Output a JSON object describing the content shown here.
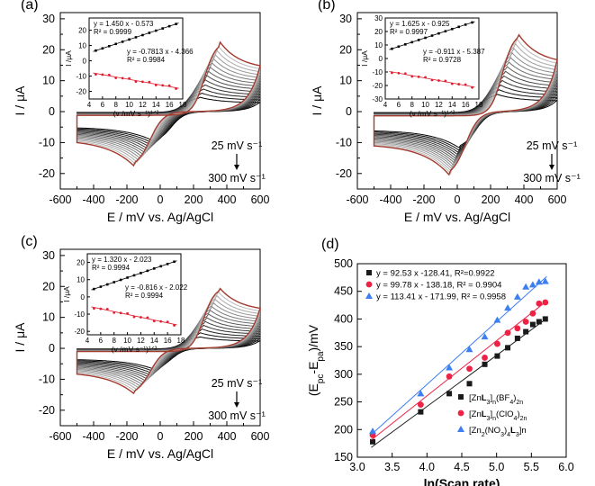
{
  "chart_data": [
    {
      "type": "line",
      "panel_label": "(a)",
      "xlabel": "E / mV vs. Ag/AgCl",
      "ylabel": "I / μA",
      "xlim": [
        -600,
        600
      ],
      "ylim": [
        -25,
        32
      ],
      "x_ticks": [
        "-600",
        "-400",
        "-200",
        "0",
        "200",
        "400",
        "600"
      ],
      "y_ticks": [
        "-20",
        "-10",
        "0",
        "10",
        "20",
        "30"
      ],
      "annotation_top": "25 mV s⁻¹",
      "annotation_bottom": "300 mV s⁻¹",
      "cv": {
        "peak_anodic_mV": 355,
        "peak_cathodic_mV": -150,
        "ipa_max_uA": 24,
        "ipc_max_uA": -18,
        "ipa_min_uA": 5,
        "ipc_min_uA": -10,
        "n_scans": 14
      },
      "inset": {
        "xlabel": "(v /mV s⁻¹)¹ᐟ²",
        "ylabel": "I /μA",
        "xlim": [
          4,
          18
        ],
        "ylim": [
          -25,
          28
        ],
        "x_ticks": [
          "4",
          "6",
          "8",
          "10",
          "12",
          "14",
          "16",
          "18"
        ],
        "y_ticks": [
          "-20",
          "-10",
          "0",
          "10",
          "20"
        ],
        "fit_anodic": "y = 1.450  x - 0.573",
        "r2_anodic": "R² = 0.9999",
        "fit_cathodic": "y = -0.7813 x - 4.366",
        "r2_cathodic": "R² = 0.9984",
        "slope_a": 1.45,
        "intercept_a": -0.573,
        "slope_c": -0.7813,
        "intercept_c": -4.366
      }
    },
    {
      "type": "line",
      "panel_label": "(b)",
      "xlabel": "E / mV vs. Ag/AgCl",
      "ylabel": "I / μA",
      "xlim": [
        -600,
        600
      ],
      "ylim": [
        -25,
        32
      ],
      "x_ticks": [
        "-600",
        "-400",
        "-200",
        "0",
        "200",
        "400",
        "600"
      ],
      "y_ticks": [
        "-20",
        "-10",
        "0",
        "10",
        "20",
        "30"
      ],
      "annotation_top": "25 mV s⁻¹",
      "annotation_bottom": "300 mV s⁻¹",
      "cv": {
        "peak_anodic_mV": 360,
        "peak_cathodic_mV": -40,
        "ipa_max_uA": 27,
        "ipc_max_uA": -21,
        "ipa_min_uA": 6,
        "ipc_min_uA": -12,
        "n_scans": 14
      },
      "inset": {
        "xlabel": "(v /mV s⁻¹)¹ᐟ²",
        "ylabel": "I /μA",
        "xlim": [
          4,
          18
        ],
        "ylim": [
          -30,
          30
        ],
        "x_ticks": [
          "4",
          "6",
          "8",
          "10",
          "12",
          "14",
          "16",
          "18"
        ],
        "y_ticks": [
          "-30",
          "-20",
          "-10",
          "0",
          "10",
          "20",
          "30"
        ],
        "fit_anodic": "y = 1.625 x - 0.925",
        "r2_anodic": "R² = 0.9997",
        "fit_cathodic": "y = -0.911 x - 5.387",
        "r2_cathodic": "R² = 0.9728",
        "slope_a": 1.625,
        "intercept_a": -0.925,
        "slope_c": -0.911,
        "intercept_c": -5.387
      }
    },
    {
      "type": "line",
      "panel_label": "(c)",
      "xlabel": "E / mV vs. Ag/AgCl",
      "ylabel": "I / μA",
      "xlim": [
        -600,
        600
      ],
      "ylim": [
        -25,
        32
      ],
      "x_ticks": [
        "-600",
        "-400",
        "-200",
        "0",
        "200",
        "400",
        "600"
      ],
      "y_ticks": [
        "-20",
        "-10",
        "0",
        "10",
        "20",
        "30"
      ],
      "annotation_top": "25 mV s⁻¹",
      "annotation_bottom": "300 mV s⁻¹",
      "cv": {
        "peak_anodic_mV": 350,
        "peak_cathodic_mV": -150,
        "ipa_max_uA": 21,
        "ipc_max_uA": -15,
        "ipa_min_uA": 4,
        "ipc_min_uA": -7,
        "n_scans": 14
      },
      "inset": {
        "xlabel": "(v /mV s⁻¹)¹ᐟ²",
        "ylabel": "I /μA",
        "xlim": [
          4,
          18
        ],
        "ylim": [
          -22,
          25
        ],
        "x_ticks": [
          "4",
          "6",
          "8",
          "10",
          "12",
          "14",
          "16",
          "18"
        ],
        "y_ticks": [
          "-20",
          "-10",
          "0",
          "10",
          "20"
        ],
        "fit_anodic": "y = 1.320 x - 2.023",
        "r2_anodic": "R² = 0.9994",
        "fit_cathodic": "y = -0.816 x - 2.022",
        "r2_cathodic": "R² = 0.9994",
        "slope_a": 1.32,
        "intercept_a": -2.023,
        "slope_c": -0.816,
        "intercept_c": -2.022
      }
    },
    {
      "type": "scatter",
      "panel_label": "(d)",
      "xlabel": "ln(Scan rate)",
      "xlabel_bold": "ln",
      "xlabel_rest": "(Scan rate)",
      "ylabel": "(Eₚᴄ-Eₚₐ)/mV",
      "ylabel_main": "(E",
      "ylabel_sub1": "pc",
      "ylabel_mid": "-E",
      "ylabel_sub2": "pa",
      "ylabel_end": ")/mV",
      "xlim": [
        3.0,
        6.0
      ],
      "ylim": [
        150,
        500
      ],
      "x_ticks": [
        "3.0",
        "3.5",
        "4.0",
        "4.5",
        "5.0",
        "5.5",
        "6.0"
      ],
      "y_ticks": [
        "150",
        "200",
        "250",
        "300",
        "350",
        "400",
        "450",
        "500"
      ],
      "x": [
        3.22,
        3.91,
        4.32,
        4.61,
        4.83,
        5.01,
        5.16,
        5.3,
        5.42,
        5.52,
        5.61,
        5.7
      ],
      "series": [
        {
          "name": "[ZnL3]n(BF4)2n",
          "marker": "square",
          "color": "#1a1a1a",
          "fit_text": "y = 92.53 x -128.41,  R²=0.9922",
          "legend_a": "[Zn",
          "legend_b": "L",
          "legend_c": "3",
          "legend_d": "]",
          "legend_e": "n",
          "legend_f": "(BF",
          "legend_g": "4",
          "legend_h": ")",
          "legend_i": "2n",
          "slope": 92.53,
          "intercept": -128.41,
          "values": [
            178,
            232,
            265,
            283,
            318,
            333,
            348,
            365,
            377,
            390,
            395,
            400
          ]
        },
        {
          "name": "[ZnL3]n(ClO4)2n",
          "marker": "circle",
          "color": "#ee2244",
          "fit_text": "y = 99.78 x - 138.18,  R² = 0.9904",
          "legend_a": "[Zn",
          "legend_b": "L",
          "legend_c": "3",
          "legend_d": "]",
          "legend_e": "n",
          "legend_f": "(ClO",
          "legend_g": "4",
          "legend_h": ")",
          "legend_i": "2n",
          "slope": 99.78,
          "intercept": -138.18,
          "values": [
            190,
            245,
            296,
            310,
            330,
            355,
            375,
            383,
            395,
            410,
            428,
            430
          ]
        },
        {
          "name": "[Zn2(NO3)4L3]n",
          "marker": "triangle",
          "color": "#3d7ff0",
          "fit_text": "y = 113.41 x - 171.99,  R² = 0.9958",
          "legend_a": "[Zn",
          "legend_b": "2",
          "legend_c": "(NO",
          "legend_d": "3",
          "legend_e": ")",
          "legend_f": "4",
          "legend_g": "L",
          "legend_h": "3",
          "legend_i": "]n",
          "slope": 113.41,
          "intercept": -171.99,
          "values": [
            197,
            265,
            312,
            345,
            368,
            398,
            420,
            440,
            458,
            462,
            467,
            468
          ]
        }
      ]
    }
  ]
}
